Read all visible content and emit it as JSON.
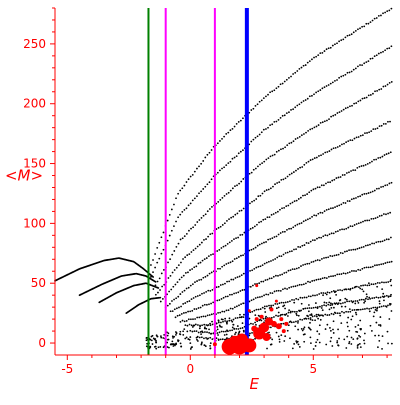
{
  "chart_data": {
    "type": "scatter",
    "title": "",
    "xlabel": "E",
    "ylabel": "<M>",
    "xlim": [
      -5.5,
      8.2
    ],
    "ylim": [
      -10,
      280
    ],
    "xticks": [
      -5,
      0,
      5
    ],
    "xtick_labels": [
      "-5",
      "0",
      "5"
    ],
    "yticks": [
      0,
      50,
      100,
      150,
      200,
      250
    ],
    "ytick_labels": [
      "0",
      "50",
      "100",
      "150",
      "200",
      "250"
    ],
    "grid": false,
    "legend": "none",
    "axis_color": "#ff0000",
    "vertical_lines": [
      {
        "x": -1.7,
        "color": "#008000",
        "width": 2
      },
      {
        "x": -1.0,
        "color": "#ff00ff",
        "width": 2
      },
      {
        "x": 1.0,
        "color": "#ff00ff",
        "width": 2
      },
      {
        "x": 2.3,
        "color": "#0000ff",
        "width": 4
      }
    ],
    "left_branches": {
      "color": "#000000",
      "series": [
        {
          "x": [
            -5.5,
            -4.5,
            -3.5,
            -2.9,
            -2.3,
            -1.9,
            -1.5
          ],
          "values": [
            52,
            62,
            69,
            71,
            68,
            62,
            55
          ]
        },
        {
          "x": [
            -4.5,
            -3.6,
            -2.8,
            -2.2,
            -1.8,
            -1.4
          ],
          "values": [
            40,
            49,
            56,
            58,
            56,
            51
          ]
        },
        {
          "x": [
            -3.7,
            -3.0,
            -2.3,
            -1.8,
            -1.3
          ],
          "values": [
            34,
            42,
            48,
            50,
            46
          ]
        },
        {
          "x": [
            -2.6,
            -2.1,
            -1.6,
            -1.2
          ],
          "values": [
            25,
            32,
            37,
            38
          ]
        }
      ]
    },
    "right_branches": {
      "color": "#000000",
      "series": [
        {
          "x": [
            -1.6,
            -0.5,
            1.0,
            3.0,
            5.0,
            8.2
          ],
          "values": [
            65,
            125,
            165,
            205,
            238,
            280
          ]
        },
        {
          "x": [
            -1.6,
            -0.5,
            1.0,
            3.0,
            5.0,
            8.2
          ],
          "values": [
            55,
            105,
            140,
            178,
            208,
            248
          ]
        },
        {
          "x": [
            -1.5,
            -0.4,
            1.0,
            3.0,
            5.0,
            8.2
          ],
          "values": [
            45,
            86,
            116,
            152,
            180,
            218
          ]
        },
        {
          "x": [
            -1.4,
            -0.3,
            1.0,
            3.0,
            5.0,
            8.2
          ],
          "values": [
            40,
            70,
            94,
            126,
            154,
            186
          ]
        },
        {
          "x": [
            -1.2,
            -0.2,
            1.0,
            3.0,
            5.0,
            8.2
          ],
          "values": [
            35,
            58,
            76,
            103,
            128,
            160
          ]
        },
        {
          "x": [
            -1.0,
            0.0,
            1.0,
            3.0,
            5.0,
            8.2
          ],
          "values": [
            30,
            48,
            60,
            84,
            106,
            134
          ]
        },
        {
          "x": [
            -0.8,
            0.2,
            1.2,
            3.0,
            5.0,
            8.2
          ],
          "values": [
            26,
            38,
            48,
            66,
            86,
            110
          ]
        },
        {
          "x": [
            -0.6,
            0.4,
            1.4,
            3.0,
            5.0,
            8.2
          ],
          "values": [
            22,
            30,
            38,
            52,
            68,
            88
          ]
        },
        {
          "x": [
            -0.4,
            0.6,
            1.6,
            3.0,
            5.0,
            8.2
          ],
          "values": [
            18,
            22,
            28,
            40,
            52,
            68
          ]
        },
        {
          "x": [
            -0.2,
            0.8,
            1.8,
            3.0,
            5.0,
            8.2
          ],
          "values": [
            15,
            15,
            20,
            30,
            40,
            52
          ]
        },
        {
          "x": [
            0.0,
            1.0,
            2.0,
            3.0,
            5.0,
            8.2
          ],
          "values": [
            10,
            8,
            12,
            20,
            30,
            40
          ]
        },
        {
          "x": [
            0.3,
            1.3,
            2.2,
            3.0,
            5.0,
            8.2
          ],
          "values": [
            5,
            3,
            6,
            12,
            22,
            32
          ]
        }
      ]
    },
    "scatter_noise": {
      "color": "#000000",
      "x_range": [
        -1.8,
        8.2
      ],
      "y_range": [
        -5,
        60
      ],
      "count": 450
    },
    "red_markers": {
      "color": "#ff0000",
      "points": [
        {
          "x": 1.6,
          "y": -3,
          "r": 8
        },
        {
          "x": 2.0,
          "y": -2,
          "r": 9
        },
        {
          "x": 2.4,
          "y": -2,
          "r": 7
        },
        {
          "x": 2.1,
          "y": 3,
          "r": 6
        },
        {
          "x": 1.8,
          "y": 2,
          "r": 5
        },
        {
          "x": 2.8,
          "y": 8,
          "r": 6
        },
        {
          "x": 3.0,
          "y": 13,
          "r": 5
        },
        {
          "x": 3.2,
          "y": 18,
          "r": 4
        },
        {
          "x": 3.1,
          "y": 5,
          "r": 4
        },
        {
          "x": 3.4,
          "y": 16,
          "r": 3
        },
        {
          "x": 3.6,
          "y": 14,
          "r": 3
        },
        {
          "x": 2.6,
          "y": 12,
          "r": 3
        },
        {
          "x": 2.9,
          "y": 22,
          "r": 2
        },
        {
          "x": 3.7,
          "y": 20,
          "r": 2
        },
        {
          "x": 3.9,
          "y": 16,
          "r": 2
        },
        {
          "x": 2.7,
          "y": 20,
          "r": 2
        },
        {
          "x": 3.3,
          "y": 28,
          "r": 2
        },
        {
          "x": 2.7,
          "y": 48,
          "r": 1.5
        },
        {
          "x": 3.5,
          "y": 35,
          "r": 1.5
        },
        {
          "x": 2.4,
          "y": 27,
          "r": 1.5
        },
        {
          "x": 1.0,
          "y": -1,
          "r": 2
        },
        {
          "x": 3.8,
          "y": 10,
          "r": 2
        }
      ]
    }
  }
}
